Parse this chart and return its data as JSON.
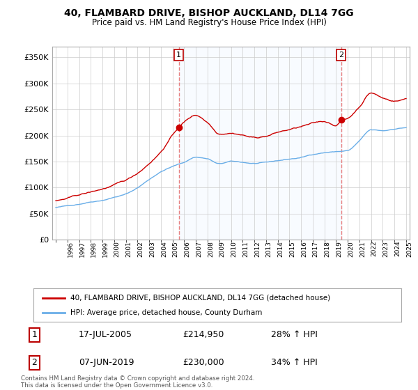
{
  "title": "40, FLAMBARD DRIVE, BISHOP AUCKLAND, DL14 7GG",
  "subtitle": "Price paid vs. HM Land Registry's House Price Index (HPI)",
  "legend_line1": "40, FLAMBARD DRIVE, BISHOP AUCKLAND, DL14 7GG (detached house)",
  "legend_line2": "HPI: Average price, detached house, County Durham",
  "transaction1_date": "17-JUL-2005",
  "transaction1_price": "£214,950",
  "transaction1_hpi": "28% ↑ HPI",
  "transaction2_date": "07-JUN-2019",
  "transaction2_price": "£230,000",
  "transaction2_hpi": "34% ↑ HPI",
  "footer": "Contains HM Land Registry data © Crown copyright and database right 2024.\nThis data is licensed under the Open Government Licence v3.0.",
  "hpi_color": "#6aaee8",
  "price_color": "#cc0000",
  "vline_color": "#e88080",
  "shade_color": "#ddeeff",
  "background_color": "#FFFFFF",
  "grid_color": "#cccccc",
  "ylim": [
    0,
    370000
  ],
  "yticks": [
    0,
    50000,
    100000,
    150000,
    200000,
    250000,
    300000,
    350000
  ],
  "ytick_labels": [
    "£0",
    "£50K",
    "£100K",
    "£150K",
    "£200K",
    "£250K",
    "£300K",
    "£350K"
  ],
  "x_start_year": 1995,
  "x_end_year": 2025,
  "transaction1_year": 2005.54,
  "transaction2_year": 2019.43,
  "transaction1_value": 214950,
  "transaction2_value": 230000
}
